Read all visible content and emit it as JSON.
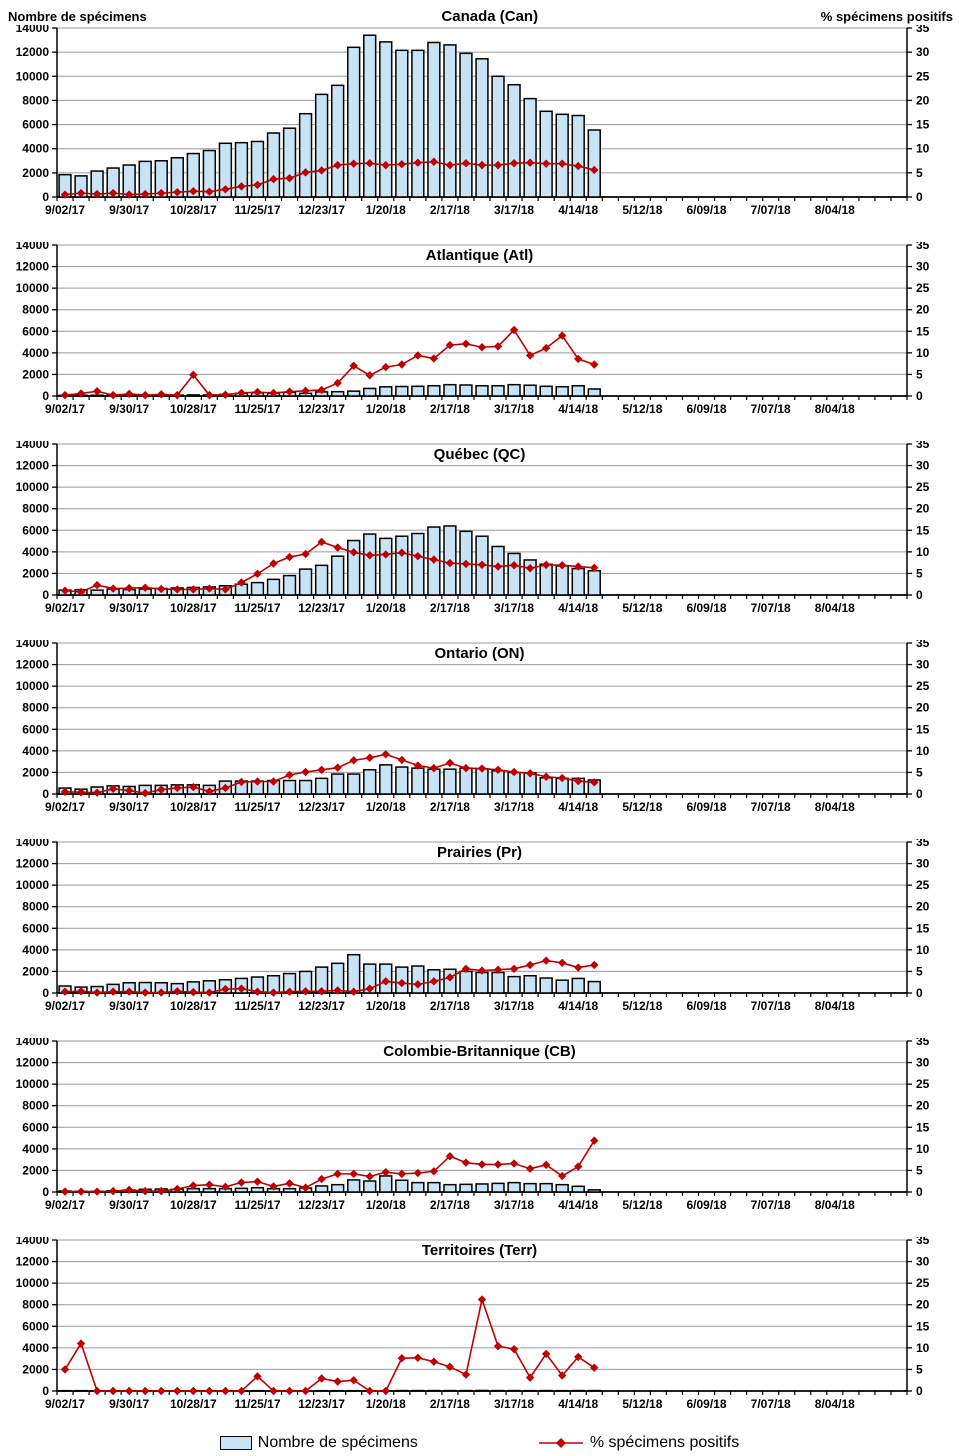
{
  "header": {
    "left_label": "Nombre de spécimens",
    "right_label": "% spécimens positifs"
  },
  "legend": {
    "items": [
      {
        "label": "Nombre de spécimens",
        "swatch": "bar-swatch"
      },
      {
        "label": "% spécimens positifs",
        "swatch": "line-diamond-swatch"
      }
    ]
  },
  "colors": {
    "bar_fill": "#C9E3F6",
    "bar_stroke": "#000000",
    "line": "#C00000",
    "grid": "#9A9A9A",
    "axis": "#000000"
  },
  "axes": {
    "y_left": {
      "title": "Nombre de spécimens",
      "min": 0,
      "max": 14000,
      "step": 2000,
      "tick_labels": [
        "14000",
        "12000",
        "10000",
        "8000",
        "6000",
        "4000",
        "2000",
        "0"
      ]
    },
    "y_right": {
      "title": "% spécimens positifs",
      "min": 0,
      "max": 35,
      "step": 5,
      "tick_labels": [
        "35",
        "30",
        "25",
        "20",
        "15",
        "10",
        "5",
        "0"
      ]
    },
    "x": {
      "total_slots": 53,
      "weeks_per_label": 4,
      "tick_labels": [
        "9/02/17",
        "9/30/17",
        "10/28/17",
        "11/25/17",
        "12/23/17",
        "1/20/18",
        "2/17/18",
        "3/17/18",
        "4/14/18",
        "5/12/18",
        "6/09/18",
        "7/07/18",
        "8/04/18"
      ]
    }
  },
  "chart_data": [
    {
      "type": "bar",
      "title": "Canada (Can)",
      "x_start_label": "9/02/17",
      "x_interval": "weekly",
      "ylim_left": [
        0,
        14000
      ],
      "ylim_right": [
        0,
        35
      ],
      "series": [
        {
          "name": "Nombre de spécimens",
          "type": "bar",
          "axis": "left",
          "values": [
            1850,
            1750,
            2150,
            2400,
            2650,
            2950,
            3000,
            3250,
            3600,
            3850,
            4450,
            4500,
            4600,
            5300,
            5700,
            6900,
            8500,
            9250,
            12400,
            13400,
            12850,
            12150,
            12150,
            12800,
            12600,
            11900,
            11450,
            10000,
            9300,
            8150,
            7100,
            6850,
            6750,
            5550
          ]
        },
        {
          "name": "% spécimens positifs",
          "type": "line",
          "axis": "right",
          "values": [
            0.5,
            0.8,
            0.6,
            0.8,
            0.5,
            0.6,
            0.8,
            1.0,
            1.2,
            1.1,
            1.6,
            2.2,
            2.5,
            3.7,
            3.9,
            5.1,
            5.5,
            6.6,
            6.9,
            7.0,
            6.6,
            6.8,
            7.1,
            7.3,
            6.6,
            7.0,
            6.6,
            6.6,
            7.0,
            7.1,
            6.9,
            6.9,
            6.4,
            5.6
          ]
        }
      ]
    },
    {
      "type": "bar",
      "title": "Atlantique (Atl)",
      "x_start_label": "9/02/17",
      "x_interval": "weekly",
      "ylim_left": [
        0,
        14000
      ],
      "ylim_right": [
        0,
        35
      ],
      "series": [
        {
          "name": "Nombre de spécimens",
          "type": "bar",
          "axis": "left",
          "values": [
            60,
            70,
            70,
            70,
            70,
            70,
            70,
            80,
            100,
            100,
            150,
            250,
            300,
            250,
            350,
            250,
            380,
            400,
            450,
            700,
            850,
            880,
            900,
            950,
            1050,
            1020,
            950,
            950,
            1050,
            1000,
            900,
            860,
            950,
            650
          ]
        },
        {
          "name": "% spécimens positifs",
          "type": "line",
          "axis": "right",
          "values": [
            0.2,
            0.6,
            1.1,
            0.2,
            0.5,
            0.2,
            0.4,
            0.2,
            4.9,
            0.2,
            0.3,
            0.7,
            0.9,
            0.7,
            1.0,
            1.2,
            1.4,
            3.0,
            7.0,
            4.8,
            6.7,
            7.3,
            9.4,
            8.7,
            11.8,
            12.1,
            11.3,
            11.5,
            15.3,
            9.4,
            11.1,
            14.0,
            8.6,
            7.3
          ]
        }
      ]
    },
    {
      "type": "bar",
      "title": "Québec (QC)",
      "x_start_label": "9/02/17",
      "x_interval": "weekly",
      "ylim_left": [
        0,
        14000
      ],
      "ylim_right": [
        0,
        35
      ],
      "series": [
        {
          "name": "Nombre de spécimens",
          "type": "bar",
          "axis": "left",
          "values": [
            450,
            500,
            450,
            550,
            500,
            550,
            600,
            650,
            700,
            750,
            850,
            1000,
            1150,
            1450,
            1800,
            2400,
            2750,
            3600,
            5050,
            5650,
            5250,
            5450,
            5700,
            6300,
            6400,
            5900,
            5450,
            4500,
            3850,
            3250,
            2850,
            2700,
            2450,
            2250
          ]
        },
        {
          "name": "% spécimens positifs",
          "type": "line",
          "axis": "right",
          "values": [
            1.0,
            0.7,
            2.3,
            1.5,
            1.6,
            1.7,
            1.4,
            1.3,
            1.3,
            1.5,
            1.3,
            2.9,
            4.9,
            7.3,
            8.8,
            9.5,
            12.3,
            11.0,
            9.9,
            9.2,
            9.4,
            9.8,
            9.0,
            8.2,
            7.4,
            7.2,
            7.0,
            6.6,
            6.9,
            6.2,
            7.0,
            6.9,
            6.6,
            6.3
          ]
        }
      ]
    },
    {
      "type": "bar",
      "title": "Ontario (ON)",
      "x_start_label": "9/02/17",
      "x_interval": "weekly",
      "ylim_left": [
        0,
        14000
      ],
      "ylim_right": [
        0,
        35
      ],
      "series": [
        {
          "name": "Nombre de spécimens",
          "type": "bar",
          "axis": "left",
          "values": [
            550,
            450,
            650,
            750,
            700,
            800,
            800,
            850,
            850,
            800,
            1200,
            1200,
            1200,
            1250,
            1250,
            1250,
            1450,
            1850,
            1850,
            2250,
            2700,
            2500,
            2400,
            2300,
            2300,
            2400,
            2350,
            2150,
            2000,
            1950,
            1500,
            1450,
            1450,
            1300
          ]
        },
        {
          "name": "% spécimens positifs",
          "type": "line",
          "axis": "right",
          "values": [
            0.5,
            0.4,
            0.3,
            1.2,
            0.8,
            0.2,
            1.0,
            1.4,
            1.6,
            0.6,
            1.4,
            2.8,
            2.9,
            2.9,
            4.4,
            5.1,
            5.6,
            6.1,
            7.8,
            8.4,
            9.2,
            7.9,
            6.6,
            6.0,
            7.2,
            6.0,
            5.9,
            5.6,
            5.1,
            4.8,
            4.0,
            3.7,
            3.0,
            2.7
          ]
        }
      ]
    },
    {
      "type": "bar",
      "title": "Prairies (Pr)",
      "x_start_label": "9/02/17",
      "x_interval": "weekly",
      "ylim_left": [
        0,
        14000
      ],
      "ylim_right": [
        0,
        35
      ],
      "series": [
        {
          "name": "Nombre de spécimens",
          "type": "bar",
          "axis": "left",
          "values": [
            650,
            550,
            600,
            800,
            950,
            970,
            950,
            870,
            1030,
            1130,
            1230,
            1350,
            1480,
            1600,
            1800,
            2000,
            2400,
            2750,
            3550,
            2680,
            2680,
            2400,
            2500,
            2150,
            2200,
            2000,
            1900,
            1900,
            1520,
            1600,
            1390,
            1190,
            1350,
            1060
          ]
        },
        {
          "name": "% spécimens positifs",
          "type": "line",
          "axis": "right",
          "values": [
            0.3,
            0.4,
            0.1,
            0.3,
            0.3,
            0.1,
            0.1,
            0.4,
            0.2,
            0.1,
            0.9,
            1.0,
            0.3,
            0.1,
            0.3,
            0.4,
            0.4,
            0.6,
            0.3,
            1.0,
            2.7,
            2.3,
            2.0,
            2.7,
            3.6,
            5.6,
            5.2,
            5.4,
            5.6,
            6.5,
            7.5,
            7.0,
            5.9,
            6.5
          ]
        }
      ]
    },
    {
      "type": "bar",
      "title": "Colombie-Britannique (CB)",
      "x_start_label": "9/02/17",
      "x_interval": "weekly",
      "ylim_left": [
        0,
        14000
      ],
      "ylim_right": [
        0,
        35
      ],
      "series": [
        {
          "name": "Nombre de spécimens",
          "type": "bar",
          "axis": "left",
          "values": [
            90,
            60,
            60,
            120,
            180,
            250,
            280,
            250,
            310,
            310,
            310,
            340,
            400,
            310,
            310,
            370,
            560,
            680,
            1120,
            1020,
            1490,
            1090,
            870,
            870,
            680,
            710,
            745,
            800,
            870,
            775,
            775,
            680,
            530,
            200
          ]
        },
        {
          "name": "% spécimens positifs",
          "type": "line",
          "axis": "right",
          "values": [
            0.1,
            0.1,
            0.1,
            0.2,
            0.5,
            0.2,
            0.2,
            0.7,
            1.5,
            1.7,
            1.2,
            2.2,
            2.4,
            1.3,
            2.0,
            1.0,
            3.0,
            4.2,
            4.2,
            3.6,
            4.6,
            4.2,
            4.4,
            4.8,
            8.3,
            6.8,
            6.4,
            6.4,
            6.6,
            5.4,
            6.3,
            3.7,
            5.9,
            11.9
          ]
        }
      ]
    },
    {
      "type": "bar",
      "title": "Territoires (Terr)",
      "x_start_label": "9/02/17",
      "x_interval": "weekly",
      "ylim_left": [
        0,
        14000
      ],
      "ylim_right": [
        0,
        35
      ],
      "series": [
        {
          "name": "Nombre de spécimens",
          "type": "bar",
          "axis": "left",
          "values": [
            30,
            30,
            20,
            20,
            20,
            20,
            20,
            20,
            20,
            20,
            20,
            20,
            30,
            20,
            20,
            20,
            30,
            30,
            30,
            20,
            20,
            40,
            40,
            40,
            40,
            40,
            50,
            40,
            40,
            30,
            40,
            30,
            40,
            40
          ]
        },
        {
          "name": "% spécimens positifs",
          "type": "line",
          "axis": "right",
          "values": [
            5.0,
            11.0,
            0,
            0,
            0,
            0,
            0,
            0,
            0,
            0,
            0,
            0,
            3.4,
            0,
            0,
            0,
            2.9,
            2.2,
            2.5,
            0,
            0,
            7.6,
            7.7,
            6.8,
            5.6,
            3.8,
            21.2,
            10.4,
            9.7,
            3.1,
            8.6,
            3.6,
            7.9,
            5.4
          ]
        }
      ]
    }
  ]
}
